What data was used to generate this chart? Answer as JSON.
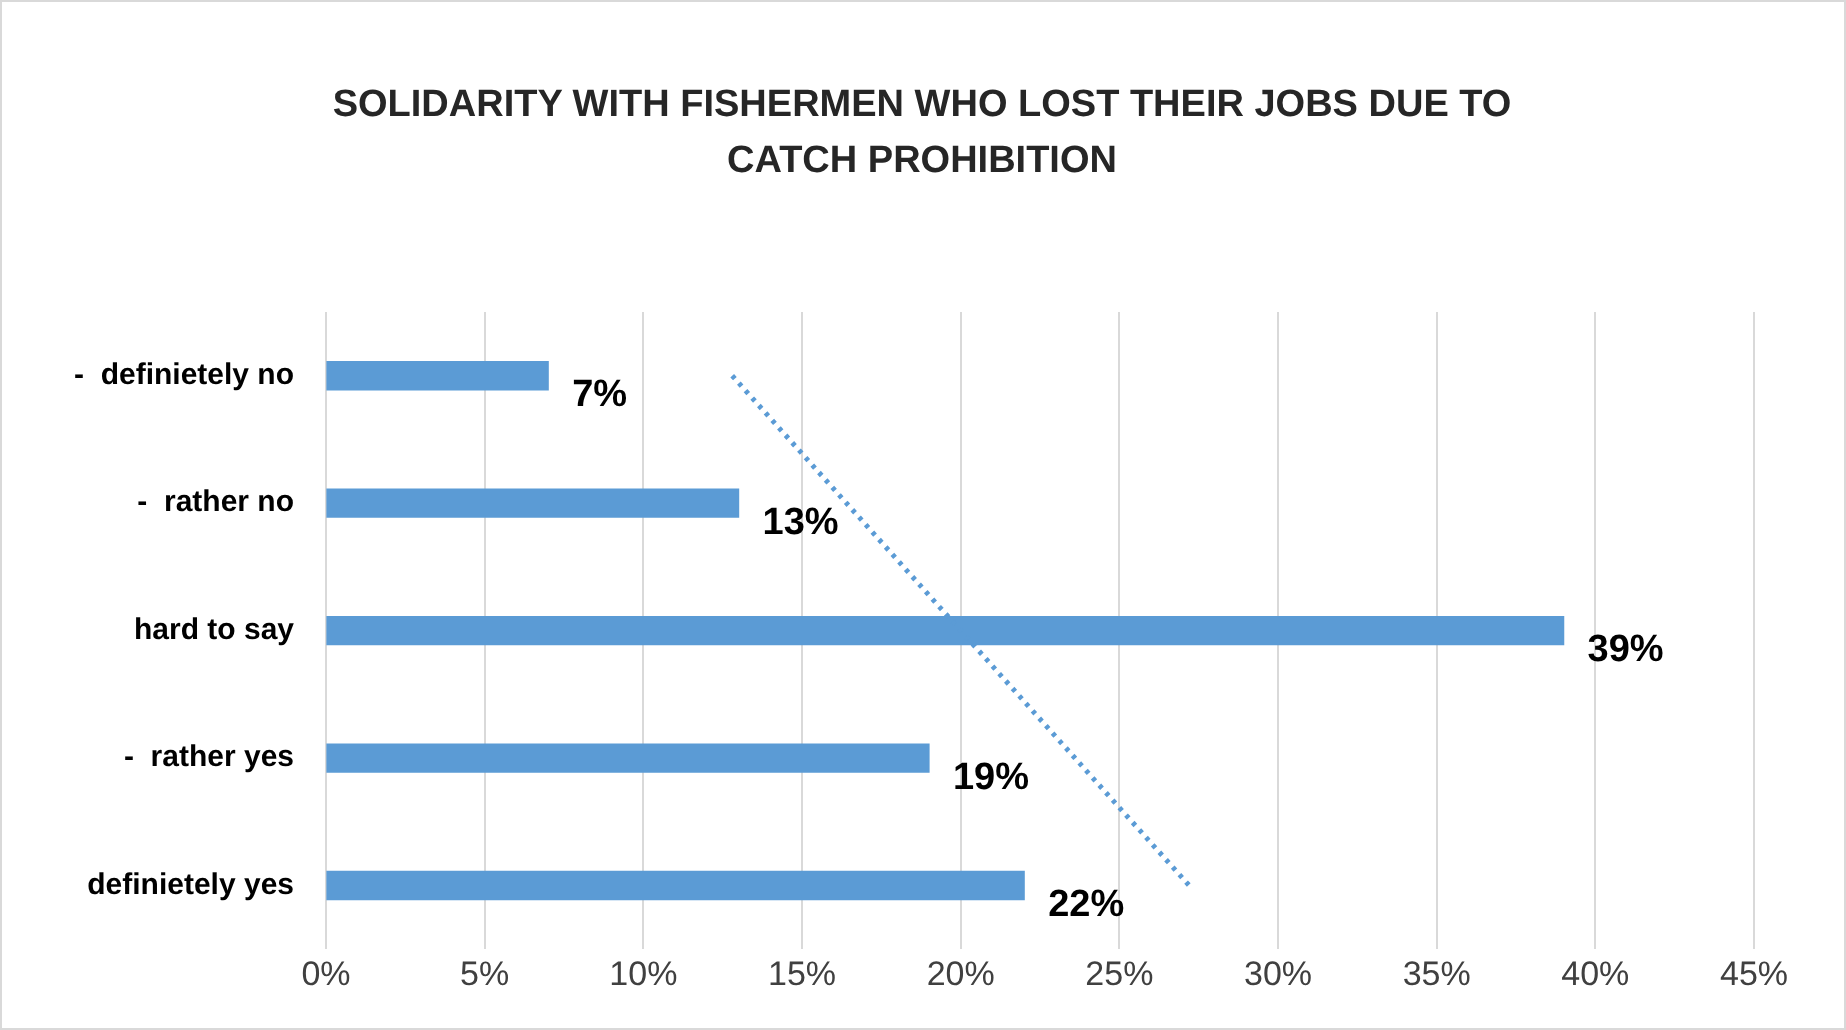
{
  "chart_data": {
    "type": "bar",
    "orientation": "horizontal",
    "title": "SOLIDARITY WITH FISHERMEN WHO LOST THEIR JOBS DUE TO CATCH PROHIBITION",
    "categories": [
      "-  definietely no",
      "-  rather no",
      "hard to say",
      "-  rather yes",
      "definietely yes"
    ],
    "series": [
      {
        "color": "#5b9bd5",
        "values": [
          7,
          13,
          39,
          19,
          22
        ],
        "value_labels": [
          "7%",
          "13%",
          "39%",
          "19%",
          "22%"
        ]
      },
      {
        "type": "line",
        "color": "#5b9bd5",
        "line_style": "dotted",
        "marker": "none",
        "values": [
          12.8,
          16.4,
          20,
          23.6,
          27.2
        ]
      }
    ],
    "xlim": [
      0,
      45
    ],
    "xticks": [
      {
        "value": 0,
        "label": "0%"
      },
      {
        "value": 5,
        "label": "5%"
      },
      {
        "value": 10,
        "label": "10%"
      },
      {
        "value": 15,
        "label": "15%"
      },
      {
        "value": 20,
        "label": "20%"
      },
      {
        "value": 25,
        "label": "25%"
      },
      {
        "value": 30,
        "label": "30%"
      },
      {
        "value": 35,
        "label": "35%"
      },
      {
        "value": 40,
        "label": "40%"
      },
      {
        "value": 45,
        "label": "45%"
      }
    ],
    "grid": "x",
    "legend": false
  }
}
